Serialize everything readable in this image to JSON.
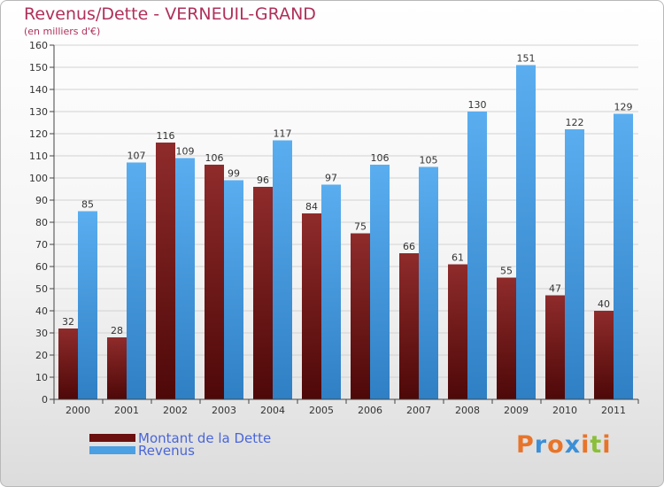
{
  "header": {
    "title": "Revenus/Dette - VERNEUIL-GRAND",
    "subtitle": "(en milliers d'€)"
  },
  "chart_data": {
    "type": "bar",
    "categories": [
      "2000",
      "2001",
      "2002",
      "2003",
      "2004",
      "2005",
      "2006",
      "2007",
      "2008",
      "2009",
      "2010",
      "2011"
    ],
    "series": [
      {
        "name": "Montant de la Dette",
        "color": "#7a1c1c",
        "values": [
          32,
          28,
          116,
          106,
          96,
          84,
          75,
          66,
          61,
          55,
          47,
          40
        ]
      },
      {
        "name": "Revenus",
        "color": "#4b9fe3",
        "values": [
          85,
          107,
          109,
          99,
          117,
          97,
          106,
          105,
          130,
          151,
          122,
          129
        ]
      }
    ],
    "ylim": [
      0,
      160
    ],
    "ytick_step": 10,
    "grid": true,
    "legend_position": "bottom-left"
  },
  "legend": {
    "items": [
      {
        "label": "Montant de la Dette",
        "color": "#6b0f0f"
      },
      {
        "label": "Revenus",
        "color": "#4b9fe3"
      }
    ]
  },
  "logo": {
    "letters": [
      "P",
      "r",
      "o",
      "x",
      "i",
      "t",
      "i"
    ],
    "colors": [
      "#e8742a",
      "#3c8fd6",
      "#e8742a",
      "#3c8fd6",
      "#e8742a",
      "#8bbf3a",
      "#e8742a"
    ]
  }
}
